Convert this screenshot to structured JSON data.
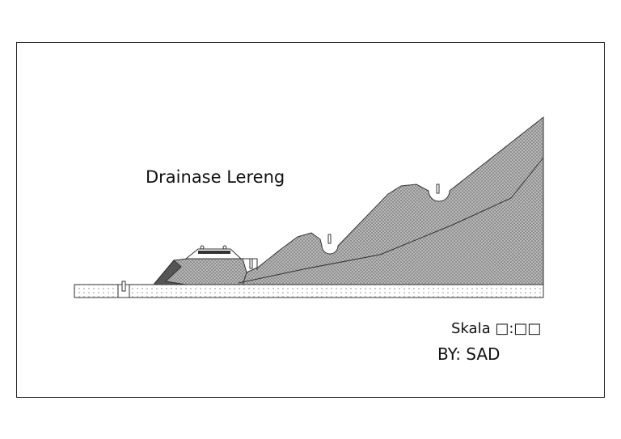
{
  "title": "Drainase Lereng",
  "scale": "Skala □:□□",
  "author": "BY: SAD"
}
